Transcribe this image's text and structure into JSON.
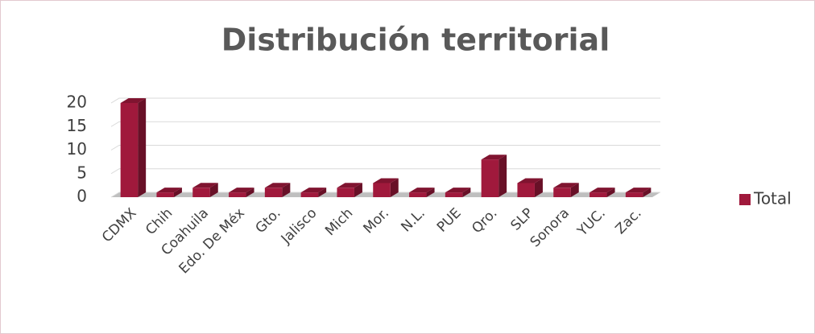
{
  "chart_data": {
    "type": "bar3d",
    "title": "Distribución territorial",
    "categories": [
      "CDMX",
      "Chih",
      "Coahuila",
      "Edo. De Méx",
      "Gto.",
      "Jalisco",
      "Mich",
      "Mor.",
      "N.L.",
      "PUE",
      "Qro.",
      "SLP",
      "Sonora",
      "YUC.",
      "Zac."
    ],
    "series": [
      {
        "name": "Total",
        "color": "#a0193c",
        "values": [
          20,
          1,
          2,
          1,
          2,
          1,
          2,
          3,
          1,
          1,
          8,
          3,
          2,
          1,
          1
        ]
      }
    ],
    "ylim": [
      0,
      20
    ],
    "yticks": [
      0,
      5,
      10,
      15,
      20
    ],
    "grid": true,
    "legend": "right"
  }
}
